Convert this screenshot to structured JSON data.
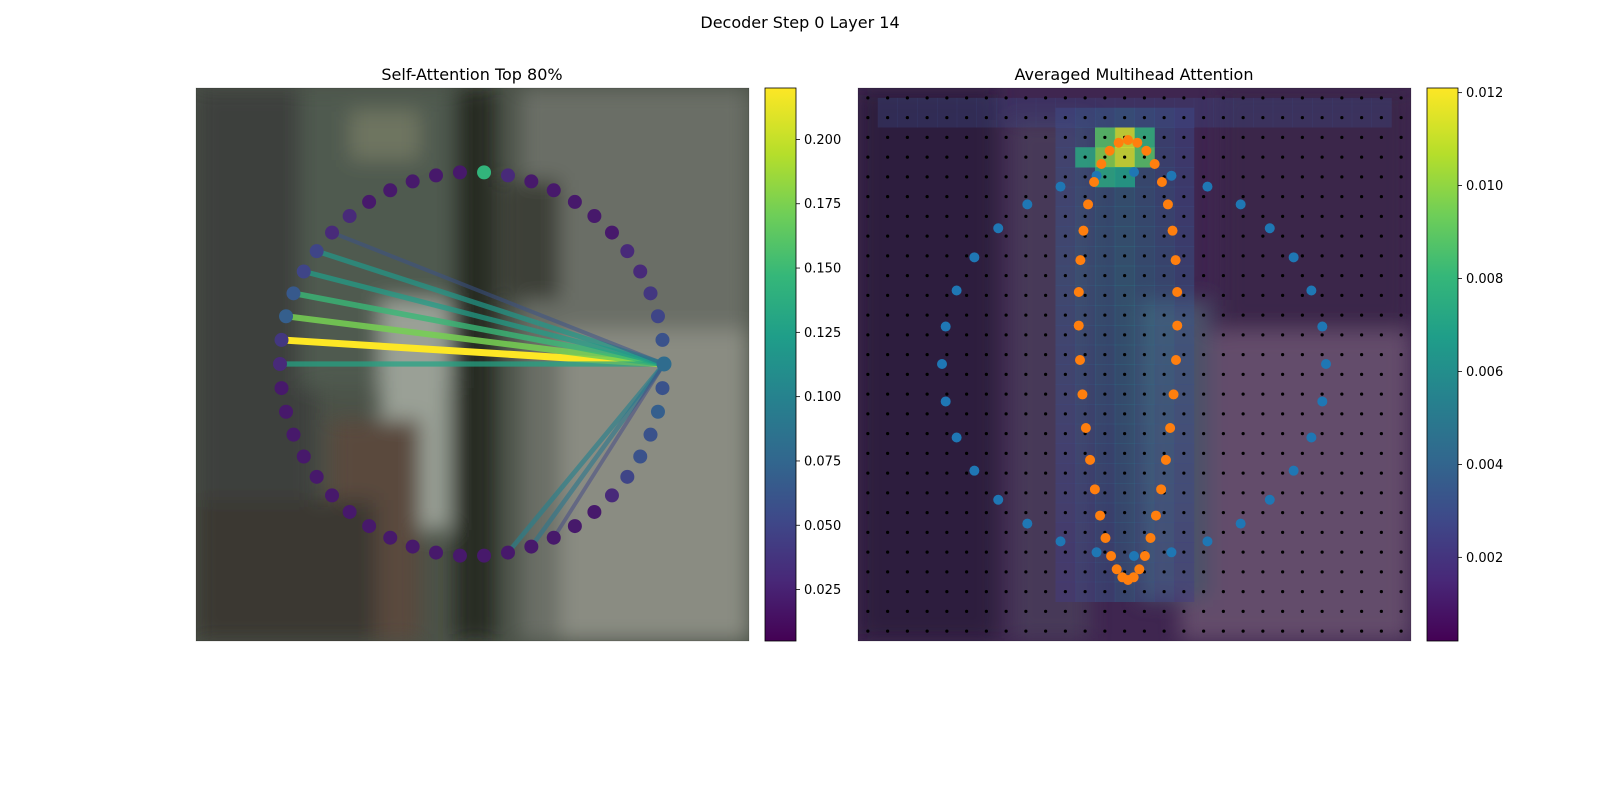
{
  "figure": {
    "title": "Decoder Step 0 Layer 14"
  },
  "colors": {
    "viridis": [
      "#440154",
      "#482878",
      "#3e4989",
      "#31688e",
      "#26828e",
      "#1f9e89",
      "#35b779",
      "#6ece58",
      "#b5de2b",
      "#fde725"
    ],
    "contour_a": "#1f77b4",
    "contour_b": "#ff7f0e",
    "grid_dot": "#000000"
  },
  "chart_data": [
    {
      "type": "attention-graph",
      "title": "Self-Attention Top 80%",
      "n_nodes": 50,
      "source_node": 12,
      "node_attention": [
        0.08,
        0.06,
        0.05,
        0.04,
        0.03,
        0.03,
        0.02,
        0.02,
        0.02,
        0.02,
        0.02,
        0.03,
        0.145,
        0.02,
        0.02,
        0.02,
        0.02,
        0.02,
        0.03,
        0.03,
        0.05,
        0.05,
        0.065,
        0.07,
        0.04,
        0.03,
        0.02,
        0.02,
        0.02,
        0.02,
        0.02,
        0.02,
        0.02,
        0.02,
        0.02,
        0.02,
        0.02,
        0.02,
        0.02,
        0.02,
        0.02,
        0.02,
        0.02,
        0.02,
        0.03,
        0.05,
        0.06,
        0.06,
        0.07,
        0.06
      ],
      "edges": [
        {
          "to": 24,
          "weight": 0.22
        },
        {
          "to": 23,
          "weight": 0.175
        },
        {
          "to": 22,
          "weight": 0.15
        },
        {
          "to": 25,
          "weight": 0.13
        },
        {
          "to": 21,
          "weight": 0.125
        },
        {
          "to": 20,
          "weight": 0.12
        },
        {
          "to": 39,
          "weight": 0.1
        },
        {
          "to": 40,
          "weight": 0.09
        },
        {
          "to": 19,
          "weight": 0.06
        },
        {
          "to": 41,
          "weight": 0.05
        }
      ],
      "colorbar": {
        "ticks": [
          "0.025",
          "0.050",
          "0.075",
          "0.100",
          "0.125",
          "0.150",
          "0.175",
          "0.200"
        ],
        "range": [
          0.005,
          0.22
        ]
      }
    },
    {
      "type": "heatmap",
      "title": "Averaged Multihead Attention",
      "grid": [
        28,
        28
      ],
      "colorbar": {
        "ticks": [
          "0.002",
          "0.004",
          "0.006",
          "0.008",
          "0.010",
          "0.012"
        ],
        "range": [
          0.0002,
          0.0121
        ]
      },
      "hot_cells": [
        {
          "row": 2,
          "col": 13,
          "value": 0.0115
        },
        {
          "row": 3,
          "col": 13,
          "value": 0.0115
        },
        {
          "row": 3,
          "col": 12,
          "value": 0.01
        },
        {
          "row": 2,
          "col": 12,
          "value": 0.009
        },
        {
          "row": 3,
          "col": 14,
          "value": 0.009
        },
        {
          "row": 2,
          "col": 14,
          "value": 0.008
        },
        {
          "row": 3,
          "col": 11,
          "value": 0.0075
        },
        {
          "row": 4,
          "col": 12,
          "value": 0.0075
        },
        {
          "row": 4,
          "col": 13,
          "value": 0.007
        }
      ],
      "contour_points": 32,
      "mask_points": 40
    }
  ]
}
